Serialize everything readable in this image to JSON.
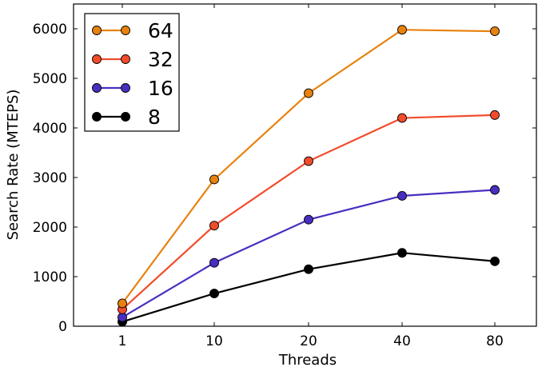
{
  "chart_data": {
    "type": "line",
    "categories": [
      "1",
      "10",
      "20",
      "40",
      "80"
    ],
    "xlabel": "Threads",
    "ylabel": "Search Rate (MTEPS)",
    "ylim": [
      0,
      6500
    ],
    "yticks": [
      "0",
      "1000",
      "2000",
      "3000",
      "4000",
      "5000",
      "6000"
    ],
    "grid": false,
    "legend_position": "top-left",
    "series": [
      {
        "name": "64",
        "color": "#e8820e",
        "values": [
          460,
          2960,
          4700,
          5980,
          5950
        ]
      },
      {
        "name": "32",
        "color": "#f24c2c",
        "values": [
          340,
          2030,
          3330,
          4200,
          4260
        ]
      },
      {
        "name": "16",
        "color": "#4a2ec0",
        "values": [
          180,
          1280,
          2150,
          2630,
          2750
        ]
      },
      {
        "name": "8",
        "color": "#000000",
        "values": [
          90,
          660,
          1150,
          1480,
          1310
        ]
      }
    ]
  }
}
